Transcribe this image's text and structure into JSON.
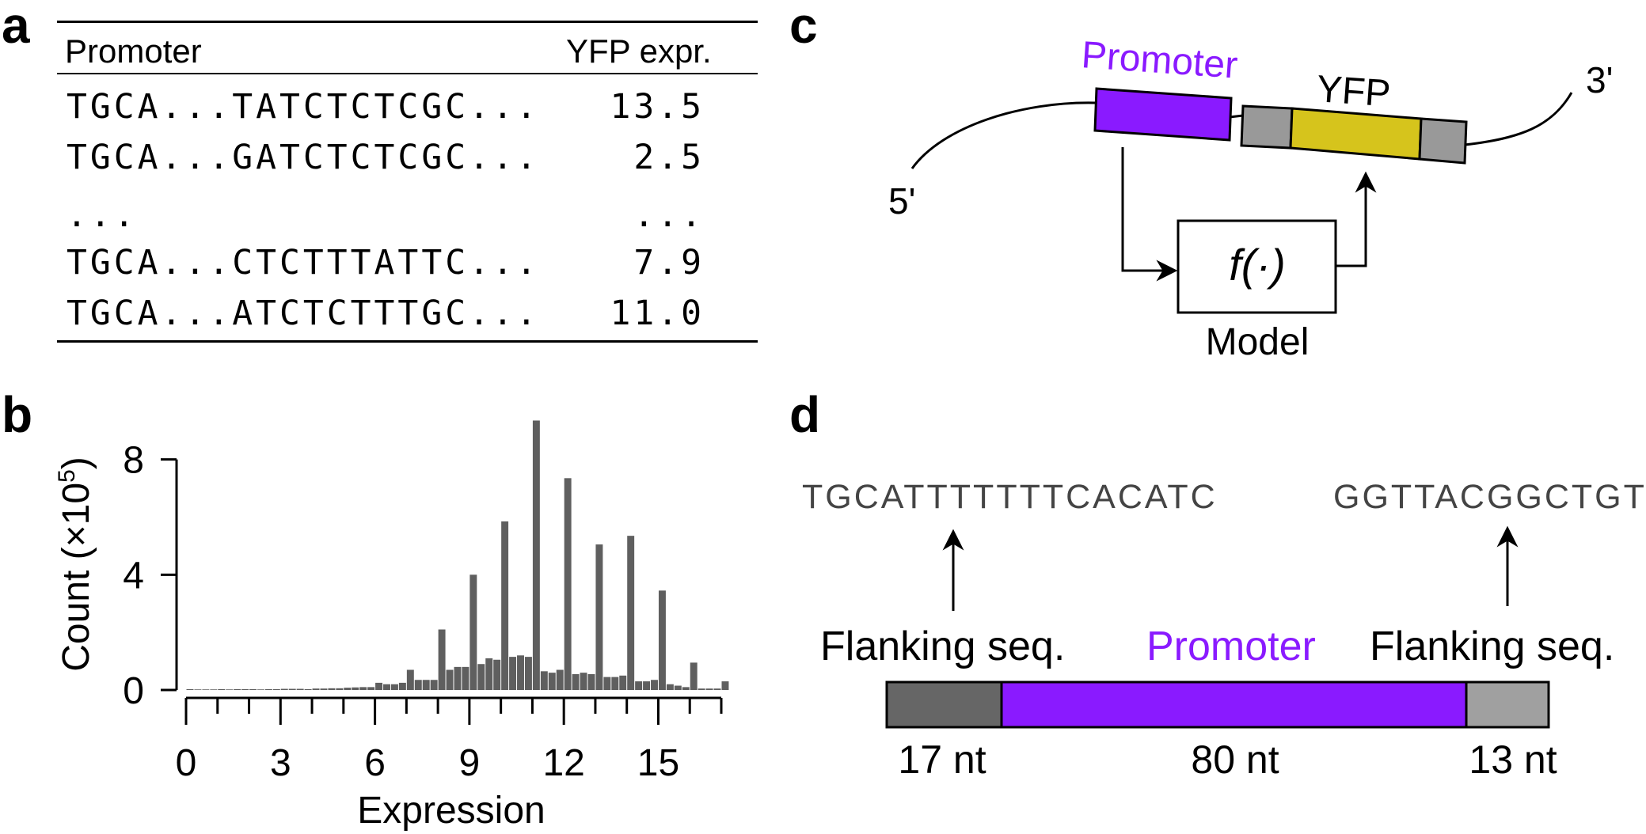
{
  "panels": {
    "a": "a",
    "b": "b",
    "c": "c",
    "d": "d"
  },
  "table": {
    "headers": {
      "promoter": "Promoter",
      "expr": "YFP expr."
    },
    "rows": [
      {
        "seq": "TGCA...TATCTCTCGC...",
        "expr": "13.5"
      },
      {
        "seq": "TGCA...GATCTCTCGC...",
        "expr": "2.5"
      },
      {
        "seq": "...",
        "expr": "..."
      },
      {
        "seq": "TGCA...CTCTTTATTC...",
        "expr": "7.9"
      },
      {
        "seq": "TGCA...ATCTCTTTGC...",
        "expr": "11.0"
      }
    ]
  },
  "chart_data": {
    "type": "bar",
    "xlabel": "Expression",
    "ylabel_main": "Count (×10",
    "ylabel_sup": "5",
    "ylabel_close": ")",
    "xlim": [
      0,
      17
    ],
    "ylim": [
      0,
      9.5
    ],
    "xticks": [
      0,
      3,
      6,
      9,
      12,
      15
    ],
    "yticks": [
      0,
      4,
      8
    ],
    "bar_width": 0.25,
    "color": "#5f5f5f",
    "x": [
      0.0,
      0.25,
      0.5,
      0.75,
      1.0,
      1.25,
      1.5,
      1.75,
      2.0,
      2.25,
      2.5,
      2.75,
      3.0,
      3.25,
      3.5,
      3.75,
      4.0,
      4.25,
      4.5,
      4.75,
      5.0,
      5.25,
      5.5,
      5.75,
      6.0,
      6.25,
      6.5,
      6.75,
      7.0,
      7.25,
      7.5,
      7.75,
      8.0,
      8.25,
      8.5,
      8.75,
      9.0,
      9.25,
      9.5,
      9.75,
      10.0,
      10.25,
      10.5,
      10.75,
      11.0,
      11.25,
      11.5,
      11.75,
      12.0,
      12.25,
      12.5,
      12.75,
      13.0,
      13.25,
      13.5,
      13.75,
      14.0,
      14.25,
      14.5,
      14.75,
      15.0,
      15.25,
      15.5,
      15.75,
      16.0,
      16.25,
      16.5,
      16.75,
      17.0
    ],
    "values": [
      0.03,
      0.02,
      0.02,
      0.02,
      0.03,
      0.02,
      0.03,
      0.03,
      0.03,
      0.02,
      0.03,
      0.03,
      0.04,
      0.04,
      0.04,
      0.03,
      0.05,
      0.05,
      0.06,
      0.06,
      0.08,
      0.09,
      0.1,
      0.1,
      0.25,
      0.2,
      0.2,
      0.25,
      0.7,
      0.35,
      0.35,
      0.35,
      2.1,
      0.7,
      0.8,
      0.8,
      4.0,
      0.9,
      1.1,
      1.05,
      5.85,
      1.15,
      1.2,
      1.15,
      9.35,
      0.65,
      0.6,
      0.7,
      7.35,
      0.55,
      0.6,
      0.55,
      5.05,
      0.45,
      0.45,
      0.5,
      5.35,
      0.3,
      0.3,
      0.35,
      3.45,
      0.2,
      0.15,
      0.1,
      0.95,
      0.05,
      0.05,
      0.05,
      0.3
    ]
  },
  "construct": {
    "five_prime": "5'",
    "three_prime": "3'",
    "promoter": "Promoter",
    "yfp": "YFP",
    "model_fn": "f(·)",
    "model_label": "Model",
    "colors": {
      "promoter": "#8a1aff",
      "yfp": "#d6c41c",
      "grey": "#999999"
    }
  },
  "flanks": {
    "seq_left": "TGCATTTTTTTCACATC",
    "seq_right": "GGTTACGGCTGTT",
    "label_left": "Flanking seq.",
    "label_promoter": "Promoter",
    "label_right": "Flanking seq.",
    "len_left": "17 nt",
    "len_promoter": "80 nt",
    "len_right": "13 nt",
    "colors": {
      "left": "#666666",
      "promoter": "#8a1aff",
      "right": "#a0a0a0"
    }
  }
}
